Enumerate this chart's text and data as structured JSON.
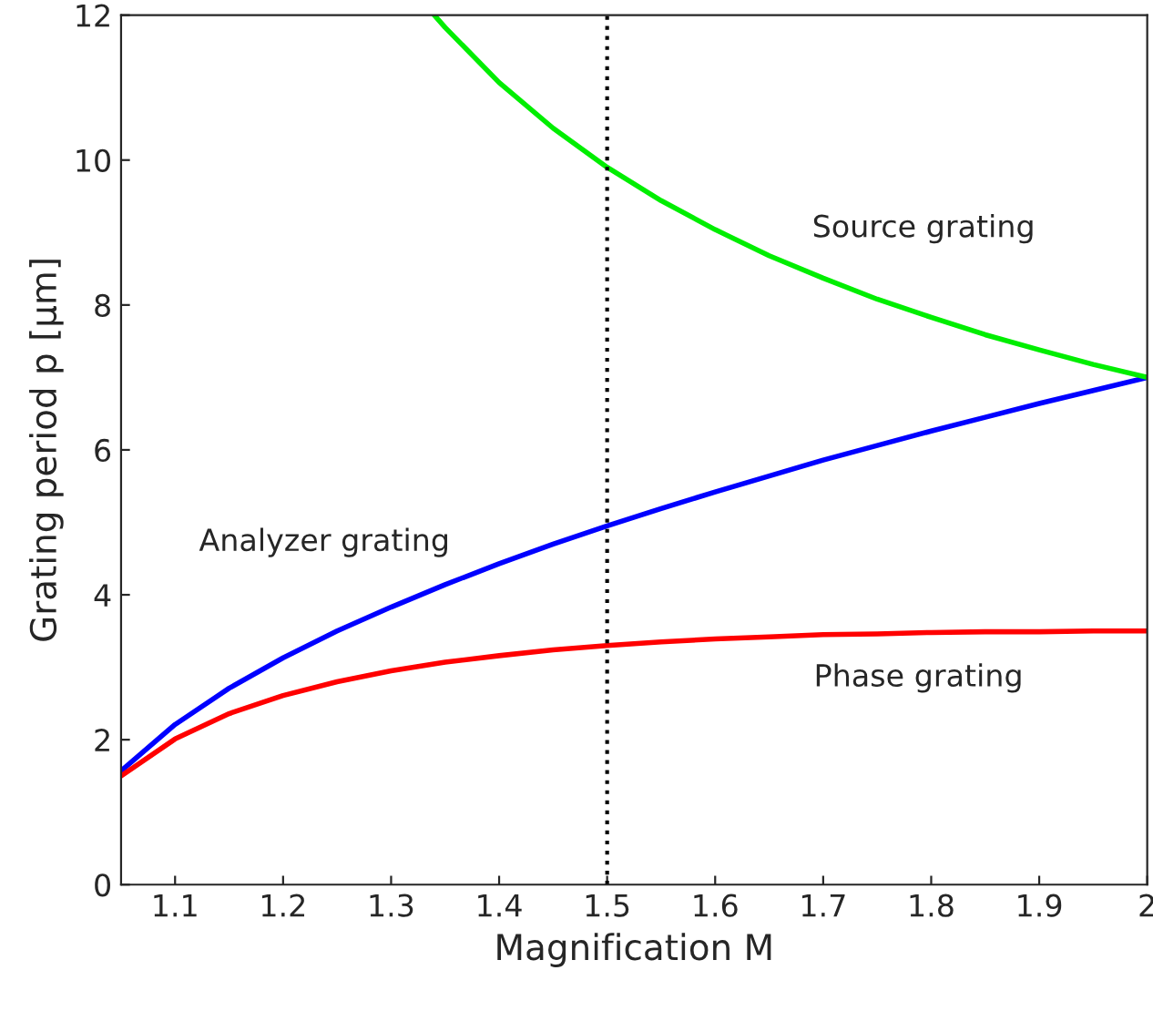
{
  "chart_data": {
    "type": "line",
    "xlabel": "Magnification M",
    "ylabel": "Grating period p [µm]",
    "xlim": [
      1.05,
      2.0
    ],
    "ylim": [
      0,
      12
    ],
    "xticks": [
      1.1,
      1.2,
      1.3,
      1.4,
      1.5,
      1.6,
      1.7,
      1.8,
      1.9,
      2
    ],
    "yticks": [
      0,
      2,
      4,
      6,
      8,
      10,
      12
    ],
    "grid": false,
    "marker": "none",
    "line_style": "solid",
    "series": [
      {
        "name": "Analyzer grating",
        "color": "#0000ff",
        "x": [
          1.05,
          1.1,
          1.15,
          1.2,
          1.25,
          1.3,
          1.35,
          1.4,
          1.45,
          1.5,
          1.55,
          1.6,
          1.65,
          1.7,
          1.75,
          1.8,
          1.85,
          1.9,
          1.95,
          2.0
        ],
        "values": [
          1.57,
          2.21,
          2.71,
          3.13,
          3.5,
          3.83,
          4.14,
          4.43,
          4.7,
          4.95,
          5.19,
          5.42,
          5.64,
          5.86,
          6.06,
          6.26,
          6.45,
          6.64,
          6.82,
          7.0
        ]
      },
      {
        "name": "Phase grating",
        "color": "#ff0000",
        "x": [
          1.05,
          1.1,
          1.15,
          1.2,
          1.25,
          1.3,
          1.35,
          1.4,
          1.45,
          1.5,
          1.55,
          1.6,
          1.65,
          1.7,
          1.75,
          1.8,
          1.85,
          1.9,
          1.95,
          2.0
        ],
        "values": [
          1.5,
          2.01,
          2.36,
          2.61,
          2.8,
          2.95,
          3.07,
          3.16,
          3.24,
          3.3,
          3.35,
          3.39,
          3.42,
          3.45,
          3.46,
          3.48,
          3.49,
          3.49,
          3.5,
          3.5
        ]
      },
      {
        "name": "Source grating",
        "color": "#00ee00",
        "x": [
          1.34,
          1.35,
          1.4,
          1.45,
          1.5,
          1.55,
          1.6,
          1.65,
          1.7,
          1.75,
          1.8,
          1.85,
          1.9,
          1.95,
          2.0
        ],
        "values": [
          12.0,
          11.83,
          11.07,
          10.44,
          9.9,
          9.44,
          9.04,
          8.68,
          8.37,
          8.08,
          7.83,
          7.59,
          7.38,
          7.18,
          7.0
        ]
      }
    ],
    "ref_lines": [
      {
        "axis": "x",
        "value": 1.5,
        "color": "#000000",
        "line_style": "dotted"
      }
    ]
  }
}
